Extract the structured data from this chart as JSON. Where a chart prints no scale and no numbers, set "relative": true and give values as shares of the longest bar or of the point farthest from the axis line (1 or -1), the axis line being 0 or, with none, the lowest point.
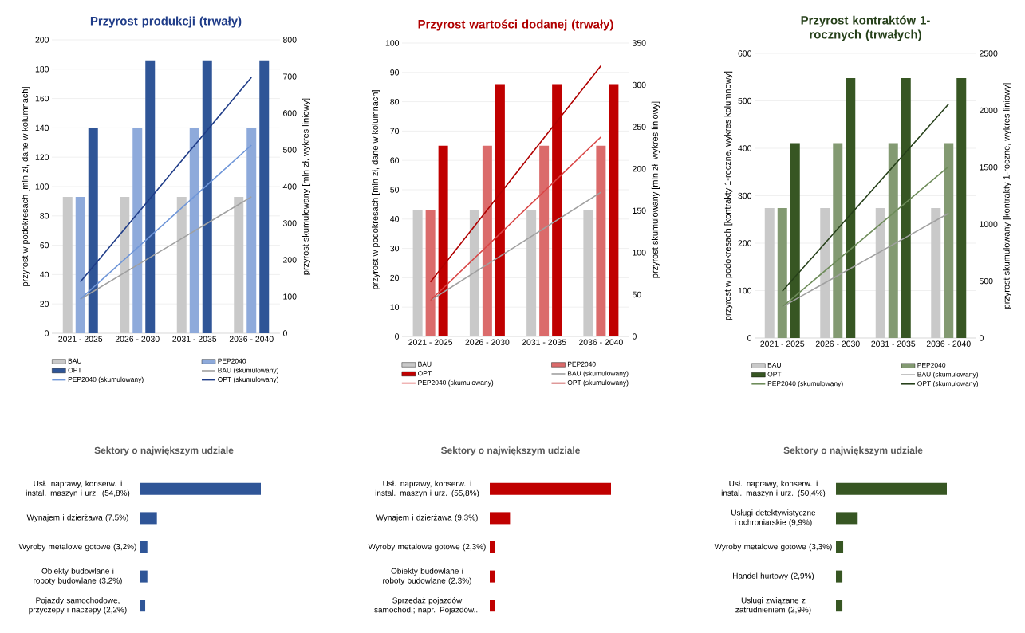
{
  "chart_data": [
    {
      "type": "bar",
      "title": "Przyrost produkcji (trwały)",
      "ylabel": "przyrost w podokresach [mln zł, dane w kolumnach]",
      "y2label": "przyrost skumulowany [mln zł, wykres liniowy]",
      "categories": [
        "2021 - 2025",
        "2026 - 2030",
        "2031 - 2035",
        "2036 - 2040"
      ],
      "series": [
        {
          "name": "BAU",
          "color": "#c9c9c9",
          "values": [
            93,
            93,
            93,
            93
          ]
        },
        {
          "name": "PEP2040",
          "color": "#8eaadb",
          "values": [
            93,
            140,
            140,
            140
          ]
        },
        {
          "name": "OPT",
          "color": "#2f5597",
          "values": [
            140,
            186,
            186,
            186
          ]
        },
        {
          "name": "BAU (skumulowany)",
          "color": "#a0a0a0",
          "type": "line",
          "axis": "y2",
          "values": [
            93,
            186,
            279,
            372
          ]
        },
        {
          "name": "PEP2040 (skumulowany)",
          "color": "#6f96d8",
          "type": "line",
          "axis": "y2",
          "values": [
            93,
            233,
            373,
            513
          ]
        },
        {
          "name": "OPT (skumulowany)",
          "color": "#1f3c88",
          "type": "line",
          "axis": "y2",
          "values": [
            140,
            326,
            512,
            698
          ]
        }
      ],
      "ylim": [
        0,
        200
      ],
      "yticks": [
        0,
        20,
        40,
        60,
        80,
        100,
        120,
        140,
        160,
        180,
        200
      ],
      "y2lim": [
        0,
        800
      ],
      "y2ticks": [
        0,
        100,
        200,
        300,
        400,
        500,
        600,
        700,
        800
      ],
      "grid": "y",
      "legend": "bottom"
    },
    {
      "type": "bar",
      "title": "Przyrost wartości dodanej (trwały)",
      "ylabel": "przyrost w podokresach [mln zł, dane w kolumnach]",
      "y2label": "przyrost skumulowany [mln zł, wykres liniowy]",
      "categories": [
        "2021 - 2025",
        "2026 - 2030",
        "2031 - 2035",
        "2036 - 2040"
      ],
      "series": [
        {
          "name": "BAU",
          "color": "#c9c9c9",
          "values": [
            43,
            43,
            43,
            43
          ]
        },
        {
          "name": "PEP2040",
          "color": "#db6b6b",
          "values": [
            43,
            65,
            65,
            65
          ]
        },
        {
          "name": "OPT",
          "color": "#c00000",
          "values": [
            65,
            86,
            86,
            86
          ]
        },
        {
          "name": "BAU (skumulowany)",
          "color": "#a0a0a0",
          "type": "line",
          "axis": "y2",
          "values": [
            43,
            86,
            129,
            172
          ]
        },
        {
          "name": "PEP2040 (skumulowany)",
          "color": "#d94545",
          "type": "line",
          "axis": "y2",
          "values": [
            43,
            108,
            173,
            238
          ]
        },
        {
          "name": "OPT (skumulowany)",
          "color": "#b00000",
          "type": "line",
          "axis": "y2",
          "values": [
            65,
            151,
            237,
            323
          ]
        }
      ],
      "ylim": [
        0,
        100
      ],
      "yticks": [
        0,
        10,
        20,
        30,
        40,
        50,
        60,
        70,
        80,
        90,
        100
      ],
      "y2lim": [
        0,
        350
      ],
      "y2ticks": [
        0,
        50,
        100,
        150,
        200,
        250,
        300,
        350
      ],
      "grid": "y",
      "legend": "bottom"
    },
    {
      "type": "bar",
      "title": "Przyrost kontraktów 1-rocznych (trwałych)",
      "ylabel": "przyrost w podokresach [kontrakty 1-roczne, wykres kolumnowy]",
      "y2label": "przyrost skumulowany [kontrakty 1-roczne, wykres liniowy]",
      "categories": [
        "2021 - 2025",
        "2026 - 2030",
        "2031 - 2035",
        "2036 - 2040"
      ],
      "series": [
        {
          "name": "BAU",
          "color": "#c9c9c9",
          "values": [
            274,
            274,
            274,
            274
          ]
        },
        {
          "name": "PEP2040",
          "color": "#839a72",
          "values": [
            274,
            411,
            411,
            411
          ]
        },
        {
          "name": "OPT",
          "color": "#375623",
          "values": [
            411,
            548,
            548,
            548
          ]
        },
        {
          "name": "BAU (skumulowany)",
          "color": "#a0a0a0",
          "type": "line",
          "axis": "y2",
          "values": [
            274,
            548,
            822,
            1096
          ]
        },
        {
          "name": "PEP2040 (skumulowany)",
          "color": "#6e8c5a",
          "type": "line",
          "axis": "y2",
          "values": [
            274,
            685,
            1096,
            1507
          ]
        },
        {
          "name": "OPT (skumulowany)",
          "color": "#26401a",
          "type": "line",
          "axis": "y2",
          "values": [
            411,
            959,
            1507,
            2055
          ]
        }
      ],
      "ylim": [
        0,
        600
      ],
      "yticks": [
        0,
        100,
        200,
        300,
        400,
        500,
        600
      ],
      "y2lim": [
        0,
        2500
      ],
      "y2ticks": [
        0,
        500,
        1000,
        1500,
        2000,
        2500
      ],
      "grid": "y",
      "legend": "bottom"
    },
    {
      "type": "bar",
      "orientation": "horizontal",
      "relative": true,
      "title": "Sektory o największym udziale",
      "categories": [
        "Usł. naprawy, konserw. i instal. maszyn i urz. (54,8%)",
        "Wynajem i dzierżawa (7,5%)",
        "Wyroby metalowe gotowe (3,2%)",
        "Obiekty budowlane i roboty budowlane (3,2%)",
        "Pojazdy samochodowe, przyczepy i naczepy (2,2%)"
      ],
      "values": [
        1,
        0.137,
        0.058,
        0.058,
        0.04
      ],
      "color": "#2f5597"
    },
    {
      "type": "bar",
      "orientation": "horizontal",
      "relative": true,
      "title": "Sektory o największym udziale",
      "categories": [
        "Usł. naprawy, konserw. i instal. maszyn i urz. (55,8%)",
        "Wynajem i dzierżawa (9,3%)",
        "Wyroby metalowe gotowe (2,3%)",
        "Obiekty budowlane i roboty budowlane (2,3%)",
        "Sprzedaż pojazdów samochod.; napr. Pojazdów..."
      ],
      "values": [
        1,
        0.167,
        0.041,
        0.041,
        0.041
      ],
      "color": "#c00000"
    },
    {
      "type": "bar",
      "orientation": "horizontal",
      "relative": true,
      "title": "Sektory o największym udziale",
      "categories": [
        "Usł. naprawy, konserw. i instal. maszyn i urz. (50,4%)",
        "Usługi detektywistyczne i ochroniarskie (9,9%)",
        "Wyroby metalowe gotowe (3,3%)",
        "Handel hurtowy (2,9%)",
        "Usługi związane z zatrudnieniem (2,9%)"
      ],
      "values": [
        1,
        0.196,
        0.065,
        0.058,
        0.058
      ],
      "color": "#375623"
    }
  ]
}
